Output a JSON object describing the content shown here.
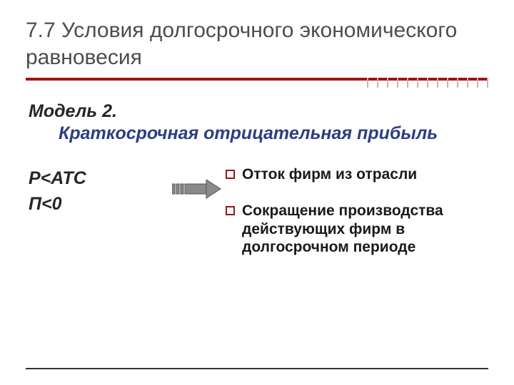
{
  "colors": {
    "title": "#4d4d4d",
    "accent": "#a01414",
    "tick": "#d6aeae",
    "subtitle_model": "#262626",
    "subtitle_desc": "#2c3e82",
    "formula": "#262626",
    "bullet_text": "#1a1a1a",
    "bottom_rule": "#333333",
    "background": "#ffffff",
    "arrow_fill": "#8a8a8a",
    "arrow_stroke": "#555555"
  },
  "fonts": {
    "title_size": 30,
    "subtitle_size": 25,
    "formula_size": 25,
    "bullet_size": 21
  },
  "title": "7.7  Условия долгосрочного экономического равновесия",
  "subtitle": {
    "model": "Модель 2.",
    "desc": "Краткосрочная отрицательная прибыль"
  },
  "formulas": [
    "P<ATC",
    "П<0"
  ],
  "bullets": [
    "Отток фирм из отрасли",
    "Сокращение производства действующих фирм в долгосрочном периоде"
  ],
  "ticks_count": 13
}
